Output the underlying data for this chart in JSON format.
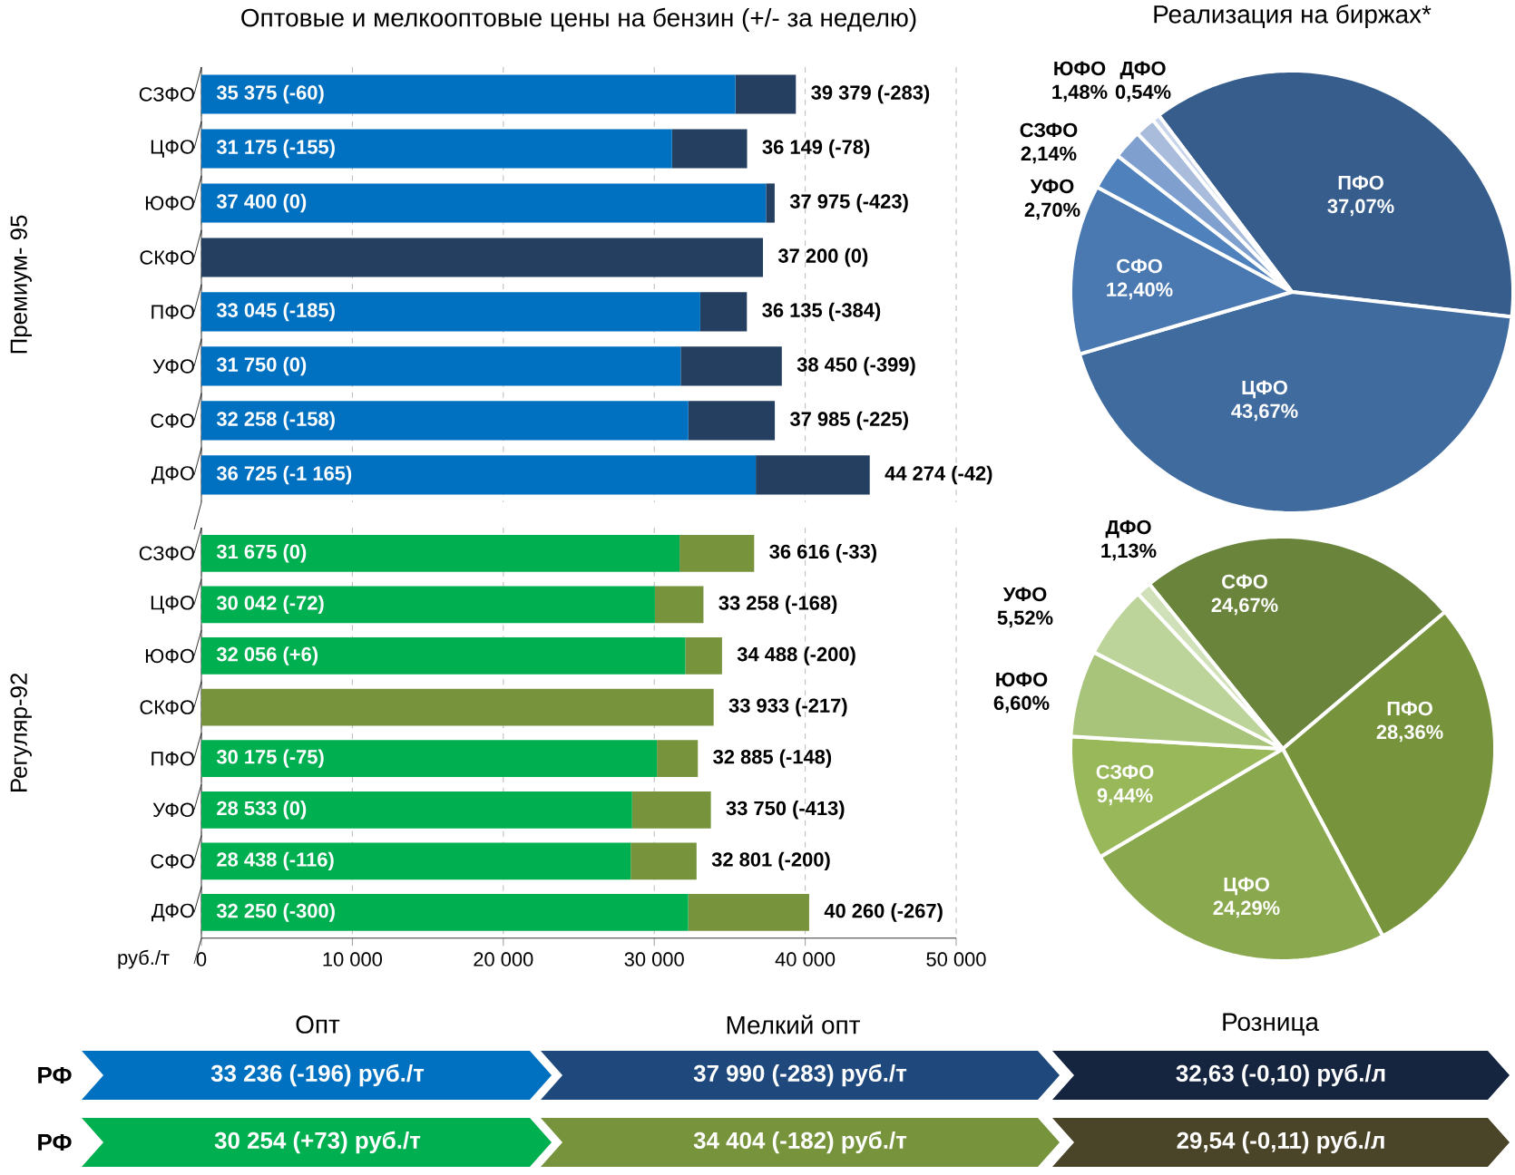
{
  "chart_data": [
    {
      "type": "bar",
      "orientation": "horizontal",
      "stacked": true,
      "title": "Оптовые и мелкооптовые цены на бензин (+/- за неделю)",
      "ylabel": "Премиум- 95",
      "categories": [
        "СЗФО",
        "ЦФО",
        "ЮФО",
        "СКФО",
        "ПФО",
        "УФО",
        "СФО",
        "ДФО"
      ],
      "series": [
        {
          "color": "#0070c0",
          "values": [
            35375,
            31175,
            37400,
            null,
            33045,
            31750,
            32258,
            36725
          ],
          "value_labels": [
            "35 375 (-60)",
            "31 175 (-155)",
            "37 400 (0)",
            null,
            "33 045 (-185)",
            "31 750 (0)",
            "32 258 (-158)",
            "36 725 (-1 165)"
          ]
        },
        {
          "color": "#243f60",
          "values": [
            4004,
            4974,
            575,
            37200,
            3090,
            6700,
            5727,
            7549
          ]
        }
      ],
      "totals": [
        "39 379 (-283)",
        "36 149 (-78)",
        "37 975 (-423)",
        "37 200 (0)",
        "36 135 (-384)",
        "38 450 (-399)",
        "37 985 (-225)",
        "44 274 (-42)"
      ],
      "xlim": [
        0,
        50000
      ],
      "xticks": [
        {
          "value": 0,
          "label": null
        },
        {
          "value": 10000,
          "label": null
        },
        {
          "value": 20000,
          "label": null
        },
        {
          "value": 30000,
          "label": null
        },
        {
          "value": 40000,
          "label": null
        },
        {
          "value": 50000,
          "label": null
        }
      ],
      "grid": "x",
      "tick_labels": "y"
    },
    {
      "type": "bar",
      "orientation": "horizontal",
      "stacked": true,
      "ylabel": "Регуляр-92",
      "xlabel": "руб./т",
      "categories": [
        "СЗФО",
        "ЦФО",
        "ЮФО",
        "СКФО",
        "ПФО",
        "УФО",
        "СФО",
        "ДФО"
      ],
      "series": [
        {
          "color": "#00b050",
          "values": [
            31675,
            30042,
            32056,
            null,
            30175,
            28533,
            28438,
            32250
          ],
          "value_labels": [
            "31 675 (0)",
            "30 042 (-72)",
            "32 056 (+6)",
            null,
            "30 175 (-75)",
            "28 533 (0)",
            "28 438 (-116)",
            "32 250 (-300)"
          ]
        },
        {
          "color": "#77933c",
          "values": [
            4941,
            3216,
            2432,
            33933,
            2710,
            5217,
            4363,
            8010
          ]
        }
      ],
      "totals": [
        "36 616 (-33)",
        "33 258 (-168)",
        "34 488 (-200)",
        "33 933 (-217)",
        "32 885 (-148)",
        "33 750 (-413)",
        "32 801 (-200)",
        "40 260 (-267)"
      ],
      "xlim": [
        0,
        50000
      ],
      "xticks": [
        0,
        {
          "value": 10000,
          "label": "10 000"
        },
        {
          "value": 20000,
          "label": "20 000"
        },
        {
          "value": 30000,
          "label": "30 000"
        },
        {
          "value": 40000,
          "label": "40 000"
        },
        {
          "value": 50000,
          "label": "50 000"
        }
      ],
      "grid": "x"
    },
    {
      "type": "pie",
      "title": "Реализация на биржах*",
      "categories": [
        "ПФО",
        "ЦФО",
        "СФО",
        "УФО",
        "СЗФО",
        "ЮФО",
        "ДФО"
      ],
      "values": [
        37.07,
        43.67,
        12.4,
        2.7,
        2.14,
        1.48,
        0.54
      ],
      "value_labels": [
        "37,07%",
        "43,67%",
        "12,40%",
        "2,70%",
        "2,14%",
        "1,48%",
        "0,54%"
      ],
      "colors": [
        "#375d8c",
        "#406b9e",
        "#4a78b0",
        "#4f81bd",
        "#7f9fcf",
        "#a9bcdc",
        "#c8d4ea"
      ]
    },
    {
      "type": "pie",
      "categories": [
        "СФО",
        "ПФО",
        "ЦФО",
        "СЗФО",
        "ЮФО",
        "УФО",
        "ДФО"
      ],
      "values": [
        24.67,
        28.36,
        24.29,
        9.44,
        6.6,
        5.52,
        1.13
      ],
      "value_labels": [
        "24,67%",
        "28,36%",
        "24,29%",
        "9,44%",
        "6,60%",
        "5,52%",
        "1,13%"
      ],
      "colors": [
        "#6a843c",
        "#77933c",
        "#8aa84e",
        "#98b85a",
        "#a8c47a",
        "#bcd49a",
        "#d0e0b8"
      ]
    },
    {
      "type": "other",
      "annotations": [
        "Опт",
        "Мелкий опт",
        "Розница",
        "РФ",
        "33 236 (-196) руб./т",
        "37 990 (-283) руб./т",
        "32,63 (-0,10) руб./л",
        "РФ",
        "30 254 (+73) руб./т",
        "34 404 (-182) руб./т",
        "29,54 (-0,11) руб./л"
      ]
    }
  ]
}
